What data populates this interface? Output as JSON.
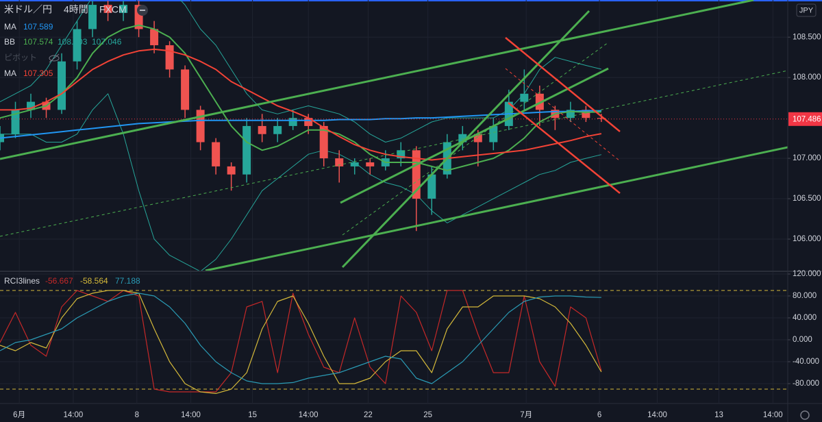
{
  "chart_data": [
    {
      "type": "candlestick",
      "title": "米ドル／円",
      "interval": "4時間",
      "source": "FXCM",
      "currency": "JPY",
      "x": [
        0,
        4,
        8,
        12,
        16,
        20,
        24,
        28,
        32,
        36,
        40,
        44,
        48,
        52,
        56,
        60,
        64,
        68,
        72,
        76,
        80,
        84,
        88,
        92,
        96,
        100,
        104,
        108,
        112,
        116,
        120,
        124,
        128,
        132,
        136,
        140,
        144,
        148,
        152,
        156
      ],
      "open": [
        107.2,
        107.3,
        107.6,
        107.7,
        107.6,
        108.2,
        108.6,
        108.9,
        108.8,
        108.9,
        108.6,
        108.4,
        108.1,
        107.6,
        107.2,
        106.9,
        106.8,
        107.4,
        107.3,
        107.4,
        107.5,
        107.4,
        107.0,
        106.9,
        106.95,
        106.9,
        107.0,
        107.1,
        106.5,
        106.8,
        107.2,
        107.3,
        107.2,
        107.4,
        107.7,
        107.8,
        107.6,
        107.5,
        107.6,
        107.5
      ],
      "high": [
        107.4,
        107.7,
        107.8,
        107.75,
        108.3,
        108.7,
        108.95,
        108.95,
        108.95,
        108.95,
        108.7,
        108.45,
        108.15,
        107.65,
        107.25,
        106.95,
        107.5,
        107.55,
        107.5,
        107.6,
        107.55,
        107.45,
        107.1,
        107.0,
        107.0,
        107.1,
        107.2,
        107.15,
        106.9,
        107.3,
        107.4,
        107.35,
        107.5,
        107.85,
        108.1,
        107.9,
        107.65,
        107.7,
        107.65,
        107.55
      ],
      "low": [
        107.1,
        107.25,
        107.5,
        107.5,
        107.55,
        108.1,
        108.5,
        108.7,
        108.7,
        108.5,
        108.3,
        108.0,
        107.5,
        107.1,
        106.8,
        106.6,
        106.7,
        107.2,
        107.2,
        107.35,
        107.3,
        106.9,
        106.7,
        106.8,
        106.8,
        106.85,
        106.9,
        106.1,
        106.3,
        106.75,
        107.1,
        106.9,
        107.1,
        107.35,
        107.6,
        107.4,
        107.35,
        107.45,
        107.45,
        107.45
      ],
      "close": [
        107.3,
        107.6,
        107.7,
        107.6,
        108.2,
        108.6,
        108.9,
        108.8,
        108.9,
        108.6,
        108.4,
        108.1,
        107.6,
        107.2,
        106.9,
        106.8,
        107.4,
        107.3,
        107.4,
        107.5,
        107.4,
        107.0,
        106.9,
        106.95,
        106.9,
        107.0,
        107.1,
        106.5,
        106.8,
        107.2,
        107.3,
        107.2,
        107.4,
        107.7,
        107.8,
        107.6,
        107.5,
        107.6,
        107.5,
        107.49
      ],
      "up_color": "#26a69a",
      "down_color": "#ef5350",
      "overlays": [
        {
          "name": "MA",
          "color": "#2196f3",
          "values": [
            107.25,
            107.27,
            107.29,
            107.31,
            107.33,
            107.35,
            107.37,
            107.39,
            107.41,
            107.43,
            107.44,
            107.45,
            107.46,
            107.47,
            107.47,
            107.47,
            107.47,
            107.47,
            107.47,
            107.47,
            107.47,
            107.47,
            107.48,
            107.48,
            107.48,
            107.49,
            107.49,
            107.5,
            107.5,
            107.51,
            107.52,
            107.53,
            107.54,
            107.55,
            107.56,
            107.57,
            107.58,
            107.58,
            107.59,
            107.589
          ]
        },
        {
          "name": "BB",
          "color": "#4caf50",
          "band_color": "#26a69a",
          "values": [
            107.5,
            107.55,
            107.6,
            107.65,
            107.8,
            108.0,
            108.3,
            108.5,
            108.6,
            108.65,
            108.6,
            108.5,
            108.3,
            108.0,
            107.7,
            107.4,
            107.2,
            107.1,
            107.15,
            107.25,
            107.35,
            107.35,
            107.3,
            107.2,
            107.05,
            106.95,
            106.95,
            106.95,
            106.9,
            106.85,
            106.9,
            106.95,
            107.0,
            107.1,
            107.25,
            107.45,
            107.55,
            107.58,
            107.57,
            107.574
          ],
          "upper": [
            107.7,
            107.8,
            107.9,
            108.1,
            108.4,
            108.7,
            109.0,
            109.2,
            109.3,
            109.3,
            109.2,
            109.1,
            108.9,
            108.6,
            108.4,
            108.1,
            107.8,
            107.6,
            107.55,
            107.6,
            107.65,
            107.6,
            107.55,
            107.45,
            107.3,
            107.2,
            107.25,
            107.35,
            107.45,
            107.5,
            107.5,
            107.5,
            107.5,
            107.6,
            107.8,
            108.1,
            108.25,
            108.2,
            108.15,
            108.103
          ],
          "lower": [
            107.3,
            107.3,
            107.3,
            107.2,
            107.2,
            107.3,
            107.6,
            107.8,
            107.3,
            106.6,
            106.0,
            105.8,
            105.7,
            105.6,
            105.75,
            106.0,
            106.3,
            106.6,
            106.75,
            106.9,
            107.05,
            107.1,
            107.05,
            106.95,
            106.8,
            106.7,
            106.65,
            106.55,
            106.35,
            106.2,
            106.3,
            106.4,
            106.5,
            106.6,
            106.7,
            106.8,
            106.85,
            106.95,
            107.0,
            107.046
          ]
        },
        {
          "name": "MA",
          "color": "#f44336",
          "values": [
            107.6,
            107.6,
            107.62,
            107.7,
            107.8,
            107.95,
            108.1,
            108.2,
            108.28,
            108.33,
            108.35,
            108.33,
            108.28,
            108.2,
            108.1,
            107.95,
            107.85,
            107.75,
            107.65,
            107.58,
            107.5,
            107.38,
            107.27,
            107.17,
            107.1,
            107.05,
            107.02,
            107.0,
            106.98,
            107.0,
            107.02,
            107.04,
            107.06,
            107.08,
            107.1,
            107.14,
            107.18,
            107.22,
            107.27,
            107.305
          ]
        }
      ],
      "pivot_label": "ピボット",
      "last_price": 107.486,
      "last_price_color": "#f23645",
      "xlim": [
        0,
        204
      ],
      "ylim": [
        105.61,
        108.96
      ],
      "yticks": [
        {
          "value": 106,
          "label": "106.000"
        },
        {
          "value": 106.5,
          "label": "106.500"
        },
        {
          "value": 107,
          "label": "107.000"
        },
        {
          "value": 108,
          "label": "108.000"
        },
        {
          "value": 108.5,
          "label": "108.500"
        }
      ],
      "xticks": [
        {
          "value": 5,
          "label": "6月"
        },
        {
          "value": 19,
          "label": "14:00"
        },
        {
          "value": 35.5,
          "label": "8"
        },
        {
          "value": 49.5,
          "label": "14:00"
        },
        {
          "value": 65.5,
          "label": "15"
        },
        {
          "value": 80,
          "label": "14:00"
        },
        {
          "value": 95.5,
          "label": "22"
        },
        {
          "value": 111,
          "label": "25"
        },
        {
          "value": 136.5,
          "label": "7月"
        },
        {
          "value": 155.5,
          "label": "6"
        },
        {
          "value": 170.5,
          "label": "14:00"
        },
        {
          "value": 186.5,
          "label": "13"
        },
        {
          "value": 200.5,
          "label": "14:00"
        }
      ],
      "grid": true
    },
    {
      "type": "line",
      "title": "RCI3lines",
      "x": [
        0,
        4,
        8,
        12,
        16,
        20,
        24,
        28,
        32,
        36,
        40,
        44,
        48,
        52,
        56,
        60,
        64,
        68,
        72,
        76,
        80,
        84,
        88,
        92,
        96,
        100,
        104,
        108,
        112,
        116,
        120,
        124,
        128,
        132,
        136,
        140,
        144,
        148,
        152,
        156
      ],
      "series": [
        {
          "color": "#c62828",
          "values": [
            -5,
            50,
            -10,
            -30,
            60,
            90,
            80,
            70,
            90,
            80,
            -90,
            -95,
            -95,
            -95,
            -95,
            -60,
            60,
            70,
            -60,
            85,
            10,
            -50,
            -60,
            40,
            -50,
            -80,
            80,
            50,
            -20,
            90,
            90,
            10,
            -60,
            -60,
            80,
            -40,
            -85,
            60,
            40,
            -56.667
          ]
        },
        {
          "color": "#d4b93a",
          "values": [
            -10,
            -20,
            -5,
            -15,
            40,
            75,
            85,
            90,
            90,
            85,
            20,
            -40,
            -80,
            -95,
            -98,
            -90,
            -60,
            20,
            70,
            80,
            30,
            -30,
            -80,
            -80,
            -70,
            -40,
            -20,
            -20,
            -60,
            20,
            60,
            60,
            80,
            80,
            80,
            75,
            60,
            30,
            -10,
            -58.564
          ]
        },
        {
          "color": "#2a9bb5",
          "values": [
            -20,
            -5,
            0,
            10,
            20,
            40,
            55,
            70,
            80,
            85,
            80,
            60,
            30,
            -10,
            -40,
            -60,
            -75,
            -80,
            -80,
            -78,
            -70,
            -65,
            -60,
            -50,
            -40,
            -30,
            -35,
            -70,
            -80,
            -60,
            -40,
            -10,
            20,
            50,
            70,
            78,
            80,
            80,
            78,
            77.188
          ]
        }
      ],
      "levels": [
        90,
        -90
      ],
      "xlim": [
        0,
        204
      ],
      "ylim": [
        -115,
        123.75
      ],
      "yticks": [
        {
          "value": 120,
          "label": "120.000"
        },
        {
          "value": 80,
          "label": "80.000"
        },
        {
          "value": 40,
          "label": "40.000"
        },
        {
          "value": 0,
          "label": "0.000"
        },
        {
          "value": -40,
          "label": "-40.000"
        },
        {
          "value": -80,
          "label": "-80.000"
        }
      ],
      "grid": true
    }
  ]
}
